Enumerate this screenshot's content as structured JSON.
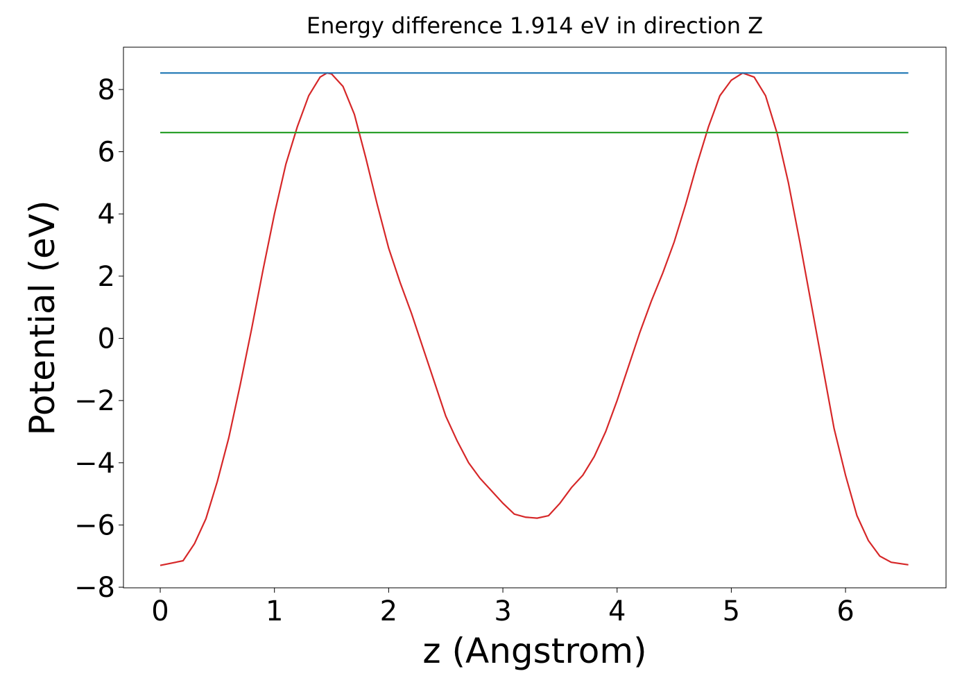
{
  "chart_data": {
    "type": "line",
    "title": "Energy difference 1.914 eV in direction Z",
    "x_label": "z (Angstrom)",
    "y_label": "Potential (eV)",
    "xlim": [
      -0.322,
      6.88
    ],
    "ylim": [
      -8.02,
      9.36
    ],
    "xticks": [
      0,
      1,
      2,
      3,
      4,
      5,
      6
    ],
    "yticks": [
      {
        "value": -8,
        "label": "−8"
      },
      {
        "value": -6,
        "label": "−6"
      },
      {
        "value": -4,
        "label": "−4"
      },
      {
        "value": -2,
        "label": "−2"
      },
      0,
      2,
      4,
      6,
      8
    ],
    "series": [
      {
        "color": "#d62728",
        "x": [
          0,
          0.2,
          0.3,
          0.4,
          0.5,
          0.6,
          0.7,
          0.8,
          0.9,
          1.0,
          1.1,
          1.2,
          1.3,
          1.4,
          1.46,
          1.5,
          1.6,
          1.7,
          1.8,
          1.9,
          2.0,
          2.1,
          2.2,
          2.3,
          2.4,
          2.5,
          2.6,
          2.7,
          2.8,
          2.9,
          3.0,
          3.1,
          3.2,
          3.3,
          3.4,
          3.5,
          3.6,
          3.7,
          3.8,
          3.9,
          4.0,
          4.1,
          4.2,
          4.3,
          4.4,
          4.5,
          4.6,
          4.7,
          4.8,
          4.9,
          5.0,
          5.1,
          5.2,
          5.3,
          5.4,
          5.5,
          5.6,
          5.7,
          5.8,
          5.9,
          6.0,
          6.1,
          6.2,
          6.3,
          6.4,
          6.55
        ],
        "values": [
          -7.3,
          -7.15,
          -6.6,
          -5.8,
          -4.6,
          -3.2,
          -1.5,
          0.3,
          2.2,
          4.0,
          5.6,
          6.8,
          7.8,
          8.4,
          8.53,
          8.5,
          8.1,
          7.2,
          5.8,
          4.3,
          2.9,
          1.8,
          0.8,
          -0.3,
          -1.4,
          -2.5,
          -3.3,
          -4.0,
          -4.5,
          -4.9,
          -5.3,
          -5.65,
          -5.75,
          -5.78,
          -5.7,
          -5.3,
          -4.8,
          -4.4,
          -3.8,
          -3.0,
          -2.0,
          -0.9,
          0.2,
          1.2,
          2.1,
          3.1,
          4.3,
          5.6,
          6.8,
          7.8,
          8.3,
          8.53,
          8.4,
          7.8,
          6.6,
          5.0,
          3.1,
          1.1,
          -0.9,
          -2.9,
          -4.4,
          -5.7,
          -6.5,
          -7.0,
          -7.2,
          -7.28
        ]
      },
      {
        "color": "#1f77b4",
        "x": [
          0,
          6.55
        ],
        "values": [
          8.53,
          8.53
        ]
      },
      {
        "color": "#2ca02c",
        "x": [
          0,
          6.55
        ],
        "values": [
          6.616,
          6.616
        ]
      }
    ]
  }
}
